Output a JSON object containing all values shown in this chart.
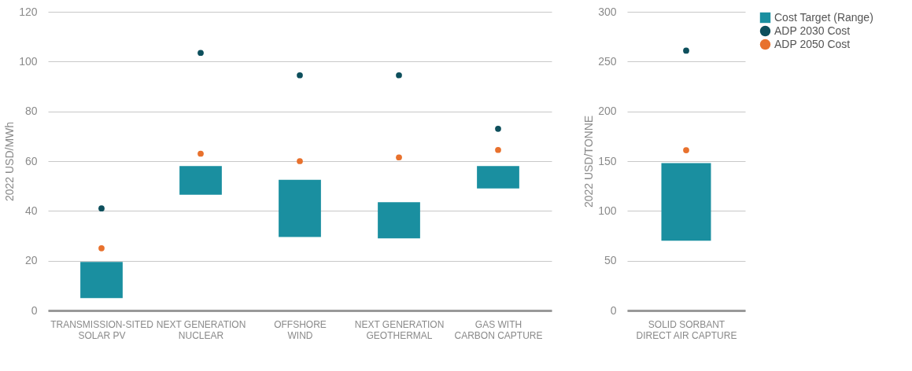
{
  "chart_data": [
    {
      "type": "bar",
      "ylabel": "2022 USD/MWh",
      "categories": [
        "TRANSMISSION-SITED SOLAR PV",
        "NEXT GENERATION NUCLEAR",
        "OFFSHORE WIND",
        "NEXT GENERATION GEOTHERMAL",
        "GAS WITH CARBON CAPTURE"
      ],
      "ylim": [
        0,
        120
      ],
      "yticks": [
        0,
        20,
        40,
        60,
        80,
        100,
        120
      ],
      "grid": "y",
      "legend": "right",
      "series": [
        {
          "name": "Cost Target (Range)",
          "color": "#1a8fa0",
          "type": "bar",
          "base": [
            5,
            46.5,
            29.5,
            29,
            49
          ],
          "values": [
            14.5,
            11.5,
            23,
            14.5,
            9
          ]
        },
        {
          "name": "ADP 2030 Cost",
          "color": "#0d4f5c",
          "type": "scatter",
          "marker": "circle",
          "values": [
            41,
            103.5,
            94.5,
            94.5,
            73
          ]
        },
        {
          "name": "ADP 2050 Cost",
          "color": "#e8712d",
          "type": "scatter",
          "marker": "circle",
          "values": [
            25,
            63,
            60,
            61.5,
            64.5
          ]
        }
      ]
    },
    {
      "type": "bar",
      "ylabel": "2022 USD/TONNE",
      "categories": [
        "SOLID SORBANT DIRECT AIR CAPTURE"
      ],
      "ylim": [
        0,
        300
      ],
      "yticks": [
        0,
        50,
        100,
        150,
        200,
        250,
        300
      ],
      "grid": "y",
      "legend": "right",
      "series": [
        {
          "name": "Cost Target (Range)",
          "color": "#1a8fa0",
          "type": "bar",
          "base": [
            70
          ],
          "values": [
            78
          ]
        },
        {
          "name": "ADP 2030 Cost",
          "color": "#0d4f5c",
          "type": "scatter",
          "marker": "circle",
          "values": [
            261
          ]
        },
        {
          "name": "ADP 2050 Cost",
          "color": "#e8712d",
          "type": "scatter",
          "marker": "circle",
          "values": [
            161
          ]
        }
      ]
    }
  ]
}
